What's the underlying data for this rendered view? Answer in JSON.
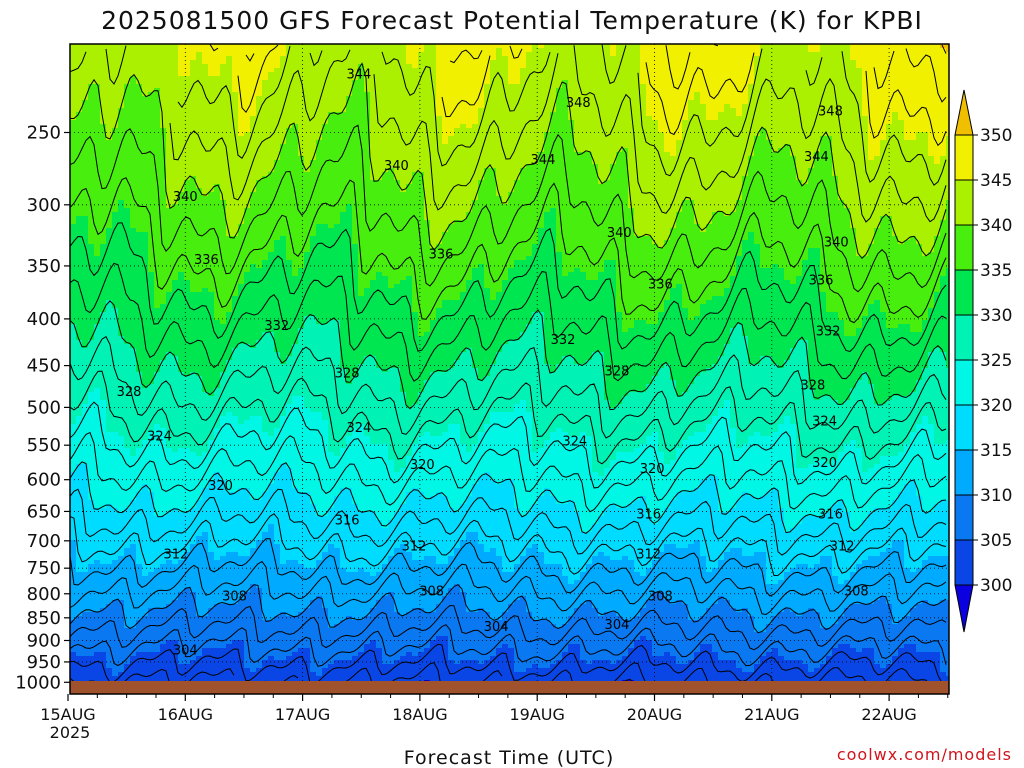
{
  "chart_data": {
    "type": "heatmap",
    "title": "2025081500 GFS Forecast Potential Temperature (K) for KPBI",
    "xlabel": "Forecast Time (UTC)",
    "ylabel": "",
    "credit": "coolwx.com/models",
    "x_ticks": [
      "15AUG",
      "16AUG",
      "17AUG",
      "18AUG",
      "19AUG",
      "20AUG",
      "21AUG",
      "22AUG"
    ],
    "x_year_label": "2025",
    "y_ticks": [
      250,
      300,
      350,
      400,
      450,
      500,
      550,
      600,
      650,
      700,
      750,
      800,
      850,
      900,
      950,
      1000
    ],
    "y_axis": "pressure-log-reversed",
    "ylim": [
      1030,
      200
    ],
    "colorbar": {
      "levels": [
        300,
        305,
        310,
        315,
        320,
        325,
        330,
        335,
        340,
        345,
        350
      ],
      "colors": [
        "#0b00e0",
        "#0a46e6",
        "#0a78f0",
        "#00aaff",
        "#00dcff",
        "#00f7e6",
        "#00f2b4",
        "#00e650",
        "#48ee0e",
        "#aaf000",
        "#f0f000",
        "#f0c000"
      ]
    },
    "contour_labels": [
      {
        "value": "344",
        "day": 2.48,
        "p": 216
      },
      {
        "value": "348",
        "day": 4.35,
        "p": 232
      },
      {
        "value": "348",
        "day": 6.5,
        "p": 237
      },
      {
        "value": "344",
        "day": 4.05,
        "p": 268
      },
      {
        "value": "344",
        "day": 6.38,
        "p": 266
      },
      {
        "value": "340",
        "day": 1.0,
        "p": 294
      },
      {
        "value": "340",
        "day": 2.8,
        "p": 272
      },
      {
        "value": "340",
        "day": 4.7,
        "p": 322
      },
      {
        "value": "340",
        "day": 6.55,
        "p": 330
      },
      {
        "value": "336",
        "day": 1.18,
        "p": 345
      },
      {
        "value": "336",
        "day": 3.18,
        "p": 340
      },
      {
        "value": "336",
        "day": 5.05,
        "p": 367
      },
      {
        "value": "336",
        "day": 6.42,
        "p": 363
      },
      {
        "value": "332",
        "day": 1.78,
        "p": 407
      },
      {
        "value": "332",
        "day": 4.22,
        "p": 422
      },
      {
        "value": "332",
        "day": 6.48,
        "p": 413
      },
      {
        "value": "328",
        "day": 0.52,
        "p": 481
      },
      {
        "value": "328",
        "day": 2.38,
        "p": 459
      },
      {
        "value": "328",
        "day": 4.68,
        "p": 457
      },
      {
        "value": "328",
        "day": 6.35,
        "p": 473
      },
      {
        "value": "324",
        "day": 0.78,
        "p": 538
      },
      {
        "value": "324",
        "day": 2.48,
        "p": 527
      },
      {
        "value": "324",
        "day": 4.32,
        "p": 545
      },
      {
        "value": "324",
        "day": 6.45,
        "p": 518
      },
      {
        "value": "320",
        "day": 1.3,
        "p": 610
      },
      {
        "value": "320",
        "day": 3.02,
        "p": 578
      },
      {
        "value": "320",
        "day": 4.98,
        "p": 584
      },
      {
        "value": "320",
        "day": 6.45,
        "p": 575
      },
      {
        "value": "316",
        "day": 2.38,
        "p": 665
      },
      {
        "value": "316",
        "day": 4.95,
        "p": 655
      },
      {
        "value": "316",
        "day": 6.5,
        "p": 655
      },
      {
        "value": "312",
        "day": 0.92,
        "p": 725
      },
      {
        "value": "312",
        "day": 2.95,
        "p": 710
      },
      {
        "value": "312",
        "day": 4.95,
        "p": 725
      },
      {
        "value": "312",
        "day": 6.6,
        "p": 710
      },
      {
        "value": "308",
        "day": 1.42,
        "p": 805
      },
      {
        "value": "308",
        "day": 3.1,
        "p": 795
      },
      {
        "value": "308",
        "day": 5.05,
        "p": 805
      },
      {
        "value": "308",
        "day": 6.72,
        "p": 795
      },
      {
        "value": "304",
        "day": 1.0,
        "p": 923
      },
      {
        "value": "304",
        "day": 3.65,
        "p": 870
      },
      {
        "value": "304",
        "day": 4.68,
        "p": 865
      }
    ]
  }
}
